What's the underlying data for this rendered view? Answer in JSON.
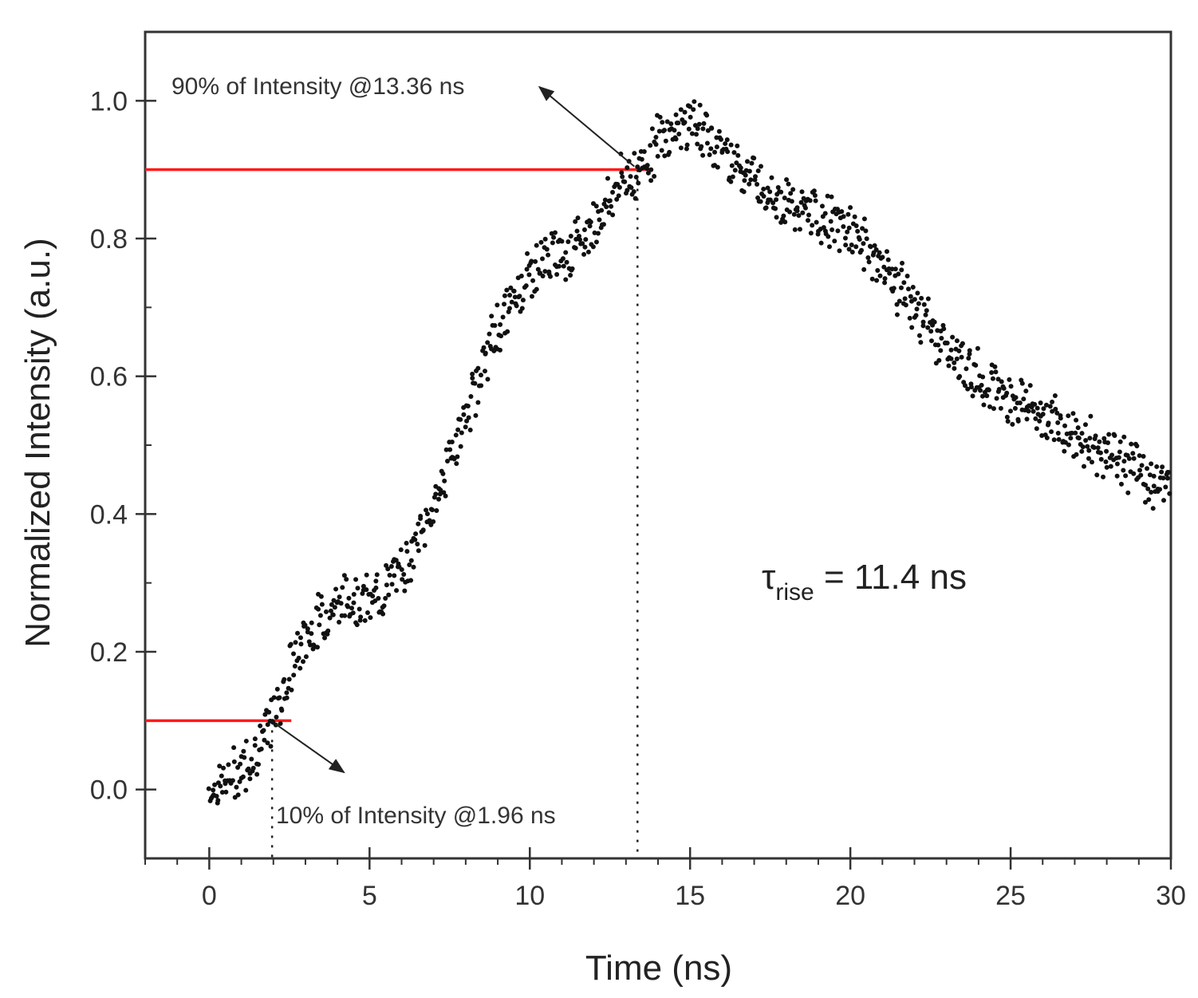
{
  "chart_data": {
    "type": "scatter",
    "title": "",
    "xlabel": "Time (ns)",
    "ylabel": "Normalized Intensity (a.u.)",
    "xlim": [
      -2,
      30
    ],
    "ylim": [
      -0.1,
      1.1
    ],
    "xticks": [
      0,
      5,
      10,
      15,
      20,
      25,
      30
    ],
    "yticks": [
      0.0,
      0.2,
      0.4,
      0.6,
      0.8,
      1.0
    ],
    "xtick_labels": [
      "0",
      "5",
      "10",
      "15",
      "20",
      "25",
      "30"
    ],
    "ytick_labels": [
      "0.0",
      "0.2",
      "0.4",
      "0.6",
      "0.8",
      "1.0"
    ],
    "grid": false,
    "series": [
      {
        "name": "Normalized intensity",
        "color": "#111111",
        "x": [
          0.0,
          0.5,
          1.0,
          1.5,
          2.0,
          2.5,
          3.0,
          3.5,
          4.0,
          4.5,
          5.0,
          5.5,
          6.0,
          6.5,
          7.0,
          7.5,
          8.0,
          8.5,
          9.0,
          9.5,
          10.0,
          10.5,
          11.0,
          11.5,
          12.0,
          12.5,
          13.0,
          13.4,
          14.0,
          14.5,
          15.0,
          15.5,
          16.0,
          16.5,
          17.0,
          17.5,
          18.0,
          18.5,
          19.0,
          19.5,
          20.0,
          20.5,
          21.0,
          21.5,
          22.0,
          22.5,
          23.0,
          23.5,
          24.0,
          24.5,
          25.0,
          25.5,
          26.0,
          26.5,
          27.0,
          27.5,
          28.0,
          28.5,
          29.0,
          29.5,
          30.0
        ],
        "y": [
          0.0,
          0.01,
          0.03,
          0.06,
          0.1,
          0.17,
          0.22,
          0.25,
          0.27,
          0.28,
          0.27,
          0.29,
          0.32,
          0.36,
          0.41,
          0.48,
          0.54,
          0.61,
          0.67,
          0.71,
          0.75,
          0.77,
          0.78,
          0.79,
          0.82,
          0.86,
          0.89,
          0.9,
          0.94,
          0.96,
          0.97,
          0.95,
          0.93,
          0.91,
          0.89,
          0.87,
          0.85,
          0.84,
          0.83,
          0.82,
          0.81,
          0.79,
          0.76,
          0.73,
          0.7,
          0.67,
          0.64,
          0.62,
          0.6,
          0.58,
          0.57,
          0.56,
          0.54,
          0.53,
          0.51,
          0.5,
          0.49,
          0.48,
          0.46,
          0.45,
          0.44
        ]
      }
    ],
    "markers": {
      "ten_percent": {
        "level": 0.1,
        "time": 1.96,
        "label": "10% of Intensity @1.96 ns",
        "color": "#ff1a1a"
      },
      "ninety_percent": {
        "level": 0.9,
        "time": 13.36,
        "label": "90% of Intensity @13.36 ns",
        "color": "#ff1a1a"
      }
    },
    "annotation": {
      "symbol": "τ",
      "subscript": "rise",
      "text": " = 11.4 ns"
    }
  }
}
